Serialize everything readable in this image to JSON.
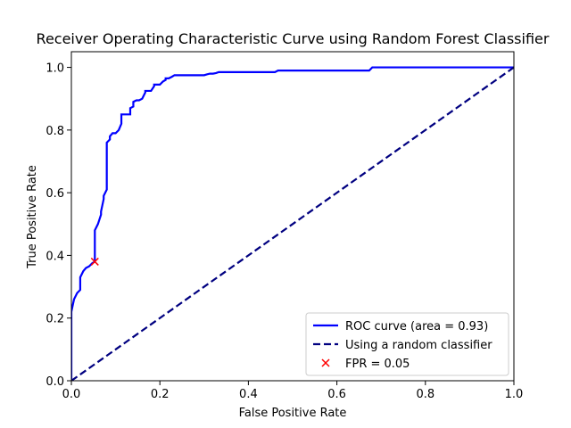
{
  "chart_data": {
    "type": "line",
    "title": "Receiver Operating Characteristic Curve using Random Forest Classifier",
    "xlabel": "False Positive Rate",
    "ylabel": "True Positive Rate",
    "xlim": [
      0.0,
      1.0
    ],
    "ylim": [
      0.0,
      1.05
    ],
    "xticks": [
      0.0,
      0.2,
      0.4,
      0.6,
      0.8,
      1.0
    ],
    "yticks": [
      0.0,
      0.2,
      0.4,
      0.6,
      0.8,
      1.0
    ],
    "tick_labels_x": [
      "0.0",
      "0.2",
      "0.4",
      "0.6",
      "0.8",
      "1.0"
    ],
    "tick_labels_y": [
      "0.0",
      "0.2",
      "0.4",
      "0.6",
      "0.8",
      "1.0"
    ],
    "grid": false,
    "legend_position": "lower-right",
    "series": [
      {
        "name": "ROC curve (area = 0.93)",
        "style": "solid",
        "color": "#0000ff",
        "x": [
          0.0,
          0.0,
          0.006,
          0.013,
          0.02,
          0.02,
          0.027,
          0.033,
          0.04,
          0.047,
          0.053,
          0.053,
          0.06,
          0.06,
          0.067,
          0.067,
          0.073,
          0.073,
          0.08,
          0.08,
          0.087,
          0.087,
          0.093,
          0.093,
          0.1,
          0.107,
          0.113,
          0.113,
          0.12,
          0.127,
          0.133,
          0.133,
          0.14,
          0.14,
          0.147,
          0.153,
          0.16,
          0.167,
          0.167,
          0.173,
          0.18,
          0.187,
          0.187,
          0.193,
          0.2,
          0.207,
          0.213,
          0.213,
          0.22,
          0.227,
          0.233,
          0.24,
          0.3,
          0.307,
          0.313,
          0.32,
          0.327,
          0.333,
          0.46,
          0.467,
          0.467,
          0.673,
          0.68,
          0.687,
          1.0
        ],
        "y": [
          0.0,
          0.22,
          0.26,
          0.28,
          0.29,
          0.33,
          0.35,
          0.36,
          0.365,
          0.375,
          0.38,
          0.48,
          0.5,
          0.5,
          0.53,
          0.54,
          0.58,
          0.59,
          0.61,
          0.76,
          0.77,
          0.78,
          0.79,
          0.79,
          0.79,
          0.8,
          0.82,
          0.85,
          0.85,
          0.85,
          0.85,
          0.87,
          0.875,
          0.89,
          0.895,
          0.895,
          0.9,
          0.92,
          0.925,
          0.925,
          0.925,
          0.94,
          0.945,
          0.945,
          0.945,
          0.955,
          0.96,
          0.965,
          0.965,
          0.97,
          0.975,
          0.975,
          0.975,
          0.978,
          0.98,
          0.98,
          0.982,
          0.985,
          0.985,
          0.99,
          0.99,
          0.99,
          1.0,
          1.0,
          1.0
        ]
      },
      {
        "name": "Using a random classifier",
        "style": "dashed",
        "color": "#000080",
        "x": [
          0.0,
          1.0
        ],
        "y": [
          0.0,
          1.0
        ]
      },
      {
        "name": "FPR = 0.05",
        "style": "marker-x",
        "color": "#ff0000",
        "x": [
          0.053
        ],
        "y": [
          0.38
        ]
      }
    ]
  }
}
